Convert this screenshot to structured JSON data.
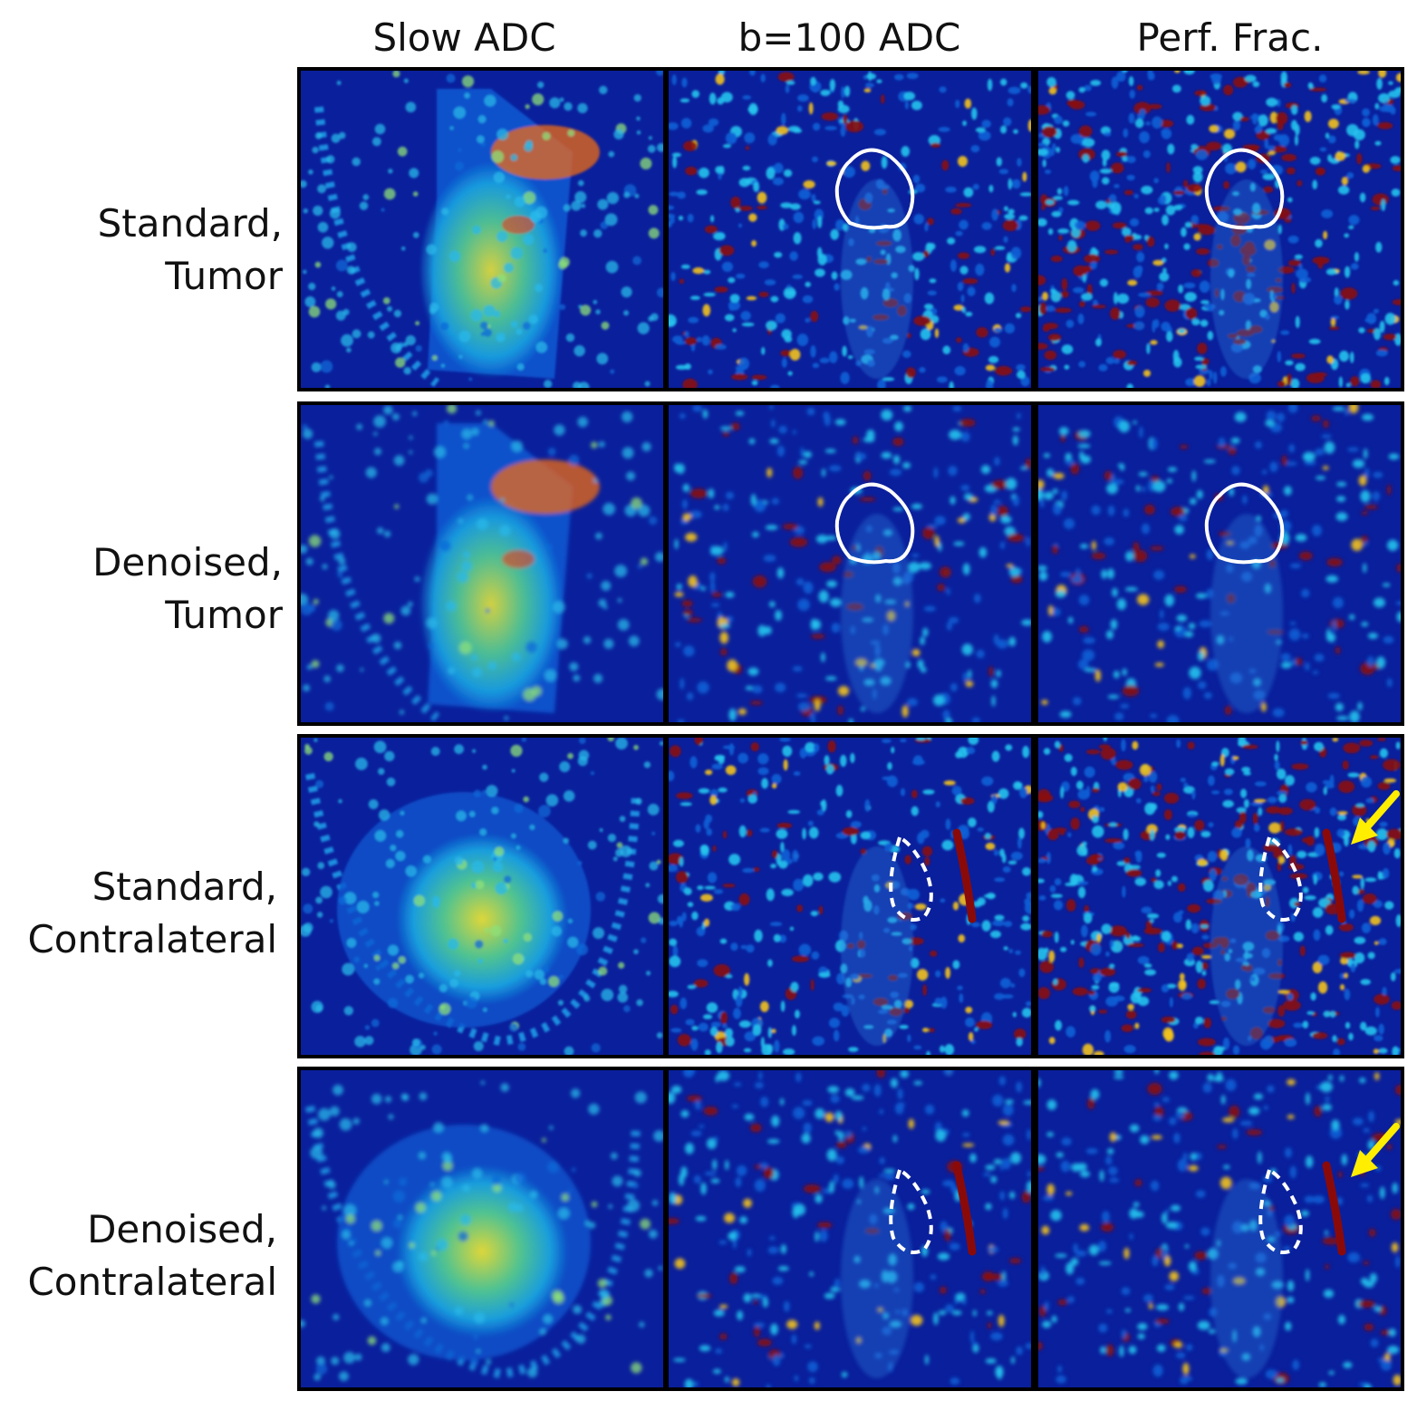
{
  "columns": [
    {
      "id": "slow",
      "label": "Slow ADC"
    },
    {
      "id": "b100",
      "label": "b=100 ADC"
    },
    {
      "id": "perf",
      "label": "Perf. Frac."
    }
  ],
  "rows": [
    {
      "id": "std-tumor",
      "line1": "Standard,",
      "line2": "Tumor",
      "roi": "solid",
      "arrow": false,
      "noise": "high",
      "anatomy": "tumor"
    },
    {
      "id": "den-tumor",
      "line1": "Denoised,",
      "line2": "Tumor",
      "roi": "solid",
      "arrow": false,
      "noise": "low",
      "anatomy": "tumor"
    },
    {
      "id": "std-contra",
      "line1": "Standard,",
      "line2": "Contralateral",
      "roi": "dashed",
      "arrow": true,
      "noise": "high",
      "anatomy": "contra"
    },
    {
      "id": "den-contra",
      "line1": "Denoised,",
      "line2": "Contralateral",
      "roi": "dashed",
      "arrow": true,
      "noise": "low",
      "anatomy": "contra"
    }
  ],
  "colors": {
    "background_blue": "#0a1f9c",
    "roi_outline": "#ffffff",
    "arrow": "#ffee00"
  }
}
